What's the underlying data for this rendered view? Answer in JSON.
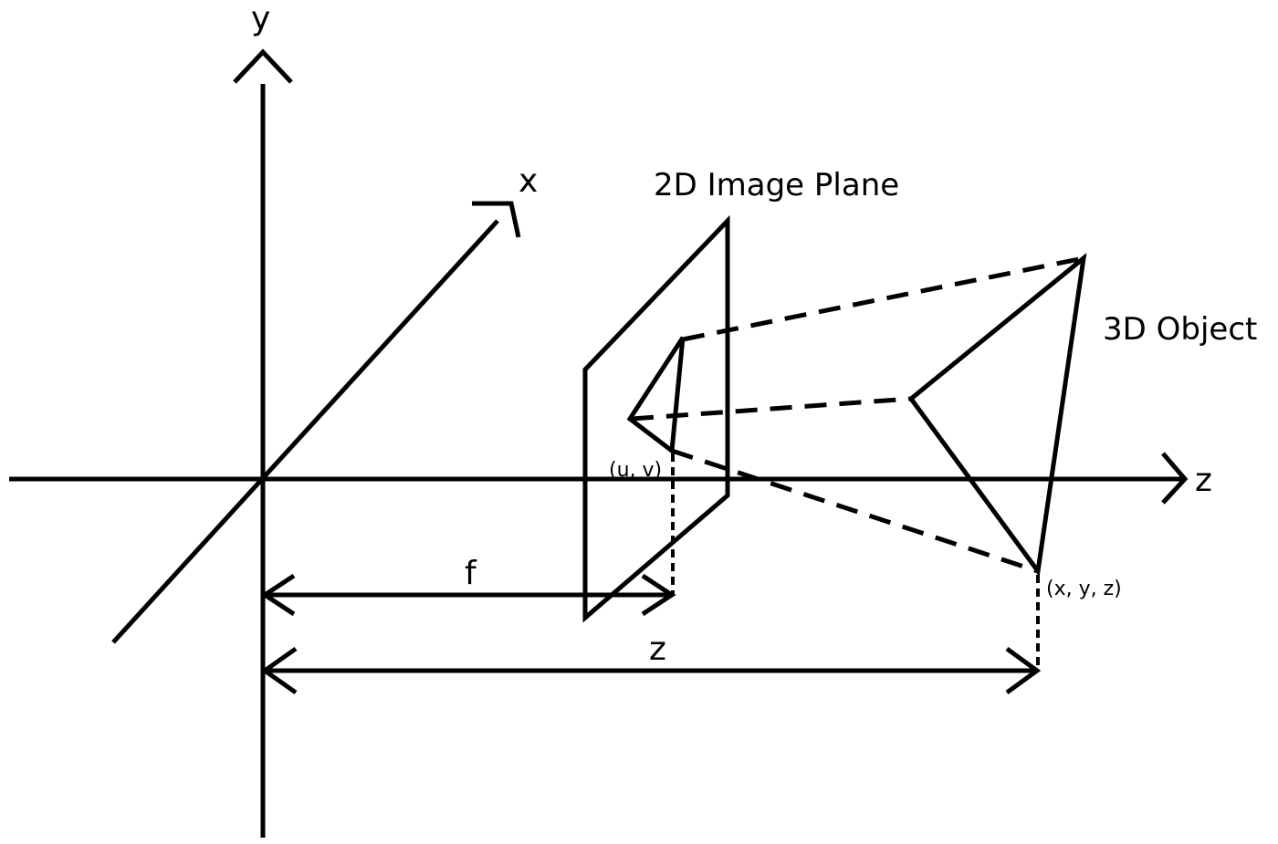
{
  "labels": {
    "y_axis": "y",
    "x_axis": "x",
    "z_axis": "z",
    "image_plane": "2D Image Plane",
    "object": "3D Object",
    "image_point": "(u, v)",
    "object_point": "(x, y, z)",
    "focal_length": "f",
    "depth": "z"
  }
}
